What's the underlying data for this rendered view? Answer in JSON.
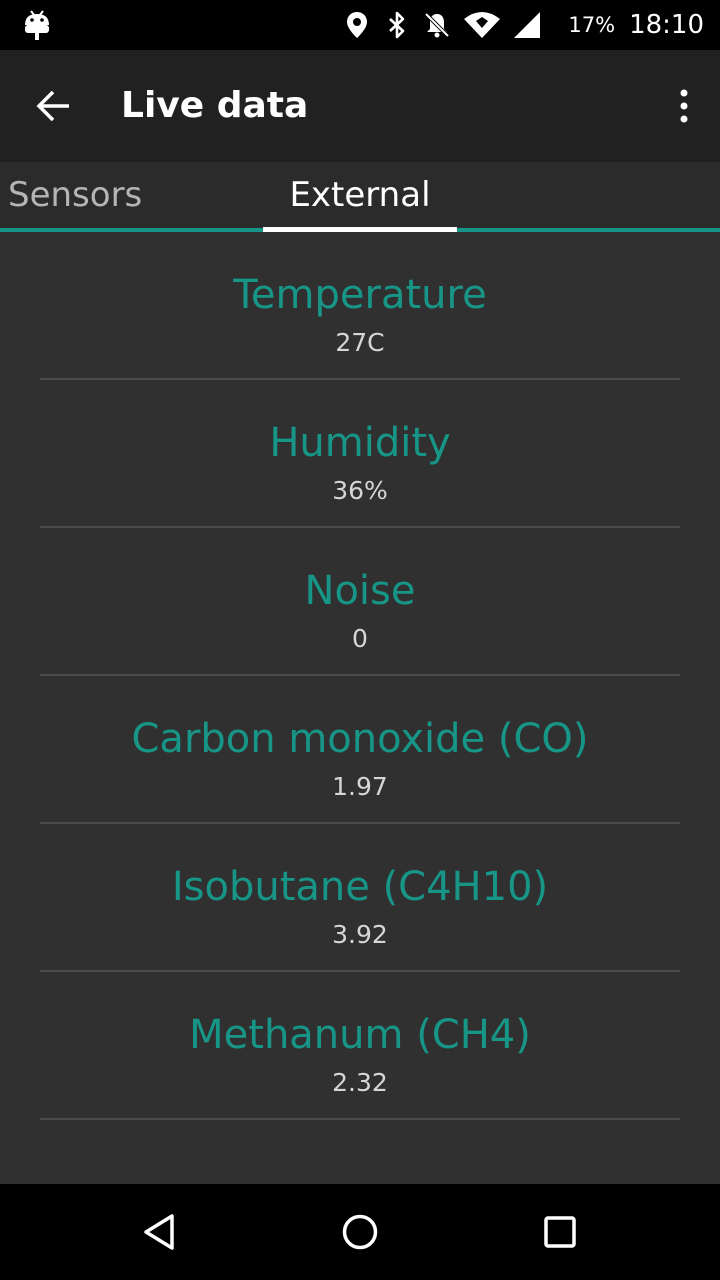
{
  "status_bar": {
    "battery": "17%",
    "time": "18:10",
    "icons": [
      "android-debug-icon",
      "location-icon",
      "bluetooth-icon",
      "notifications-off-icon",
      "wifi-icon",
      "cell-signal-icon"
    ]
  },
  "toolbar": {
    "title": "Live data",
    "back_icon": "arrow-back-icon",
    "overflow_icon": "more-vert-icon"
  },
  "tabs": [
    {
      "label": "Sensors",
      "selected": false
    },
    {
      "label": "External",
      "selected": true
    }
  ],
  "colors": {
    "accent": "#159688",
    "toolbar": "#212121",
    "background": "#303030"
  },
  "readings": [
    {
      "name": "Temperature",
      "value": "27C"
    },
    {
      "name": "Humidity",
      "value": "36%"
    },
    {
      "name": "Noise",
      "value": "0"
    },
    {
      "name": "Carbon monoxide (CO)",
      "value": "1.97"
    },
    {
      "name": "Isobutane (C4H10)",
      "value": "3.92"
    },
    {
      "name": "Methanum (CH4)",
      "value": "2.32"
    }
  ],
  "nav_bar": {
    "icons": [
      "nav-back-icon",
      "nav-home-icon",
      "nav-recents-icon"
    ]
  }
}
